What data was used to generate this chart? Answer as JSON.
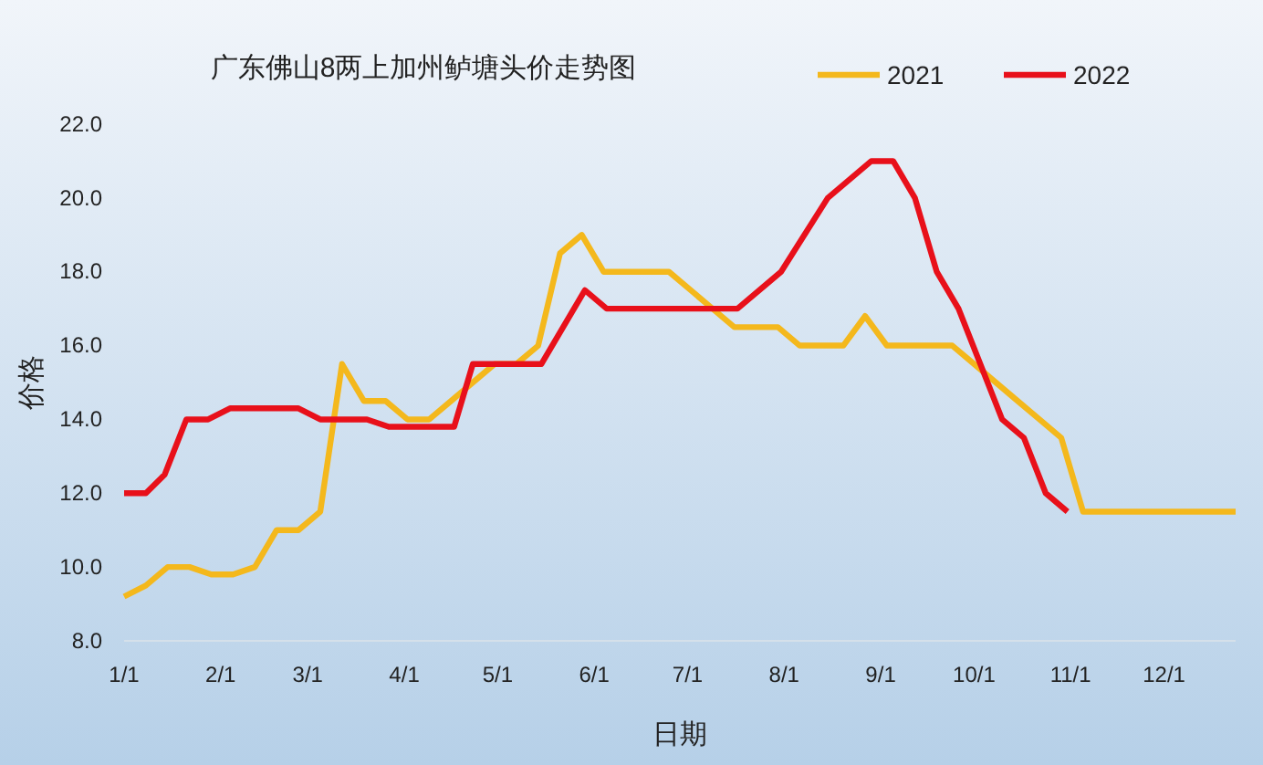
{
  "chart_data": {
    "type": "line",
    "title": "广东佛山8两上加州鲈塘头价走势图",
    "xlabel": "日期",
    "ylabel": "价格",
    "xlim": [
      "--01-01",
      "--12-24"
    ],
    "xticks": [
      {
        "value": "--01-01",
        "label": "1/1"
      },
      {
        "value": "--02-01",
        "label": "2/1"
      },
      {
        "value": "--03-01",
        "label": "3/1"
      },
      {
        "value": "--04-01",
        "label": "4/1"
      },
      {
        "value": "--05-01",
        "label": "5/1"
      },
      {
        "value": "--06-01",
        "label": "6/1"
      },
      {
        "value": "--07-01",
        "label": "7/1"
      },
      {
        "value": "--08-01",
        "label": "8/1"
      },
      {
        "value": "--09-01",
        "label": "9/1"
      },
      {
        "value": "--10-01",
        "label": "10/1"
      },
      {
        "value": "--11-01",
        "label": "11/1"
      },
      {
        "value": "--12-01",
        "label": "12/1"
      }
    ],
    "ylim": [
      8,
      22
    ],
    "yticks": [
      {
        "value": 8,
        "label": "8.0"
      },
      {
        "value": 10,
        "label": "10.0"
      },
      {
        "value": 12,
        "label": "12.0"
      },
      {
        "value": 14,
        "label": "14.0"
      },
      {
        "value": 16,
        "label": "16.0"
      },
      {
        "value": 18,
        "label": "18.0"
      },
      {
        "value": 20,
        "label": "20.0"
      },
      {
        "value": 22,
        "label": "22.0"
      }
    ],
    "legend": "top right",
    "grid": false,
    "marker": "none",
    "line_style": "solid",
    "series": [
      {
        "name": "2021",
        "color": "#f4b81c",
        "x": [
          "--01-01",
          "--01-08",
          "--01-15",
          "--01-22",
          "--01-29",
          "--02-05",
          "--02-12",
          "--02-19",
          "--02-26",
          "--03-05",
          "--03-12",
          "--03-19",
          "--03-26",
          "--04-02",
          "--04-09",
          "--04-16",
          "--04-23",
          "--04-30",
          "--05-07",
          "--05-14",
          "--05-21",
          "--05-28",
          "--06-04",
          "--06-11",
          "--06-18",
          "--06-25",
          "--07-02",
          "--07-09",
          "--07-16",
          "--07-23",
          "--07-30",
          "--08-06",
          "--08-13",
          "--08-20",
          "--08-27",
          "--09-03",
          "--09-10",
          "--09-17",
          "--09-24",
          "--10-01",
          "--10-08",
          "--10-15",
          "--10-22",
          "--10-29",
          "--11-05",
          "--11-12",
          "--11-19",
          "--11-26",
          "--12-03",
          "--12-10",
          "--12-17",
          "--12-24"
        ],
        "values": [
          9.2,
          9.5,
          10.0,
          10.0,
          9.8,
          9.8,
          10.0,
          11.0,
          11.0,
          11.5,
          15.5,
          14.5,
          14.5,
          14.0,
          14.0,
          14.5,
          15.0,
          15.5,
          15.5,
          16.0,
          18.5,
          19.0,
          18.0,
          18.0,
          18.0,
          18.0,
          17.5,
          17.0,
          16.5,
          16.5,
          16.5,
          16.0,
          16.0,
          16.0,
          16.8,
          16.0,
          16.0,
          16.0,
          16.0,
          15.5,
          15.0,
          14.5,
          14.0,
          13.5,
          11.5,
          11.5,
          11.5,
          11.5,
          11.5,
          11.5,
          11.5,
          11.5
        ]
      },
      {
        "name": "2022",
        "color": "#e8101a",
        "x": [
          "--01-01",
          "--01-08",
          "--01-14",
          "--01-21",
          "--01-28",
          "--02-04",
          "--02-26",
          "--03-05",
          "--03-20",
          "--03-27",
          "--04-17",
          "--04-23",
          "--05-15",
          "--05-29",
          "--06-05",
          "--07-17",
          "--07-31",
          "--08-15",
          "--08-29",
          "--09-05",
          "--09-12",
          "--09-19",
          "--09-26",
          "--10-10",
          "--10-17",
          "--10-24",
          "--10-31"
        ],
        "values": [
          12.0,
          12.0,
          12.5,
          14.0,
          14.0,
          14.3,
          14.3,
          14.0,
          14.0,
          13.8,
          13.8,
          15.5,
          15.5,
          17.5,
          17.0,
          17.0,
          18.0,
          20.0,
          21.0,
          21.0,
          20.0,
          18.0,
          17.0,
          14.0,
          13.5,
          12.0,
          11.5
        ]
      }
    ]
  }
}
